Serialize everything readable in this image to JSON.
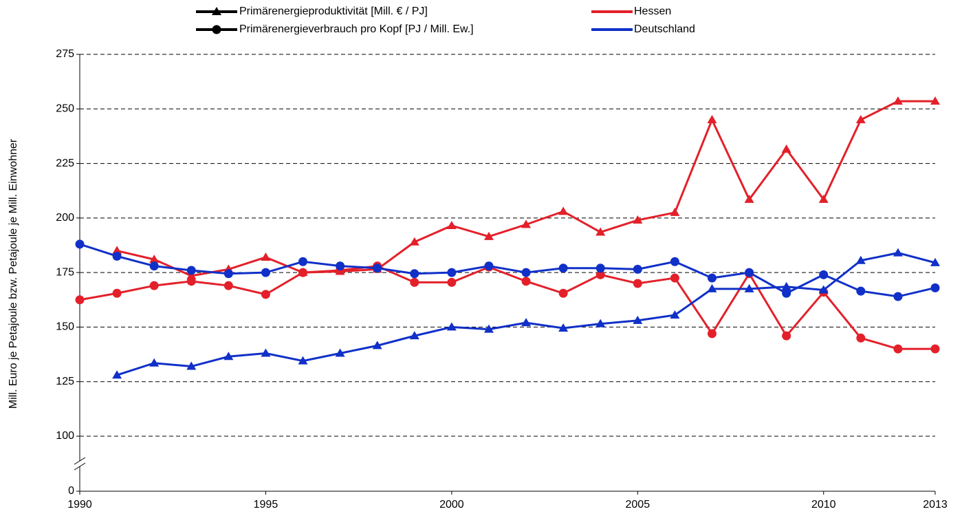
{
  "chart_data": {
    "type": "line",
    "y_label": "Mill. Euro je Petajoule bzw. Petajoule je Mill. Einwohner",
    "x": [
      1990,
      1991,
      1992,
      1993,
      1994,
      1995,
      1996,
      1997,
      1998,
      1999,
      2000,
      2001,
      2002,
      2003,
      2004,
      2005,
      2006,
      2007,
      2008,
      2009,
      2010,
      2011,
      2012,
      2013
    ],
    "xlim": [
      1990,
      2013
    ],
    "xticks": [
      1990,
      1995,
      2000,
      2005,
      2010,
      2013
    ],
    "ylim": [
      0,
      275
    ],
    "y_break": [
      0,
      100
    ],
    "yticks": [
      0,
      100,
      125,
      150,
      175,
      200,
      225,
      250,
      275
    ],
    "grid": true,
    "markers": [
      {
        "name": "Primärenergieproduktivität [Mill. € / PJ]",
        "marker": "triangle"
      },
      {
        "name": "Primärenergieverbrauch pro Kopf [PJ / Mill. Ew.]",
        "marker": "circle"
      }
    ],
    "regions": [
      {
        "name": "Hessen",
        "color": "#e3202a",
        "series": [
          {
            "marker": "triangle",
            "values": [
              null,
              185,
              181,
              173.5,
              176.5,
              182,
              175,
              175.5,
              176.5,
              189,
              196.5,
              191.5,
              197,
              203,
              193.5,
              199,
              202.5,
              245,
              208.5,
              231.5,
              208.5,
              245,
              253.5,
              253.5
            ]
          },
          {
            "marker": "circle",
            "values": [
              162.5,
              165.5,
              169,
              171,
              169,
              165,
              175,
              176,
              178,
              170.5,
              170.5,
              177.5,
              171,
              165.5,
              174,
              170,
              172.5,
              147,
              174.5,
              146,
              166,
              145,
              140,
              140
            ]
          }
        ]
      },
      {
        "name": "Deutschland",
        "color": "#1030c8",
        "series": [
          {
            "marker": "triangle",
            "values": [
              null,
              128,
              133.5,
              132,
              136.5,
              138,
              134.5,
              138,
              141.5,
              146,
              150,
              149,
              152,
              149.5,
              151.5,
              153,
              155.5,
              167.5,
              167.5,
              168.5,
              167,
              180.5,
              184,
              179.5
            ]
          },
          {
            "marker": "circle",
            "values": [
              188,
              182.5,
              178,
              176,
              174.5,
              175,
              180,
              178,
              177,
              174.5,
              175,
              178,
              175,
              177,
              177,
              176.5,
              180,
              172.5,
              175,
              165.5,
              174,
              166.5,
              164,
              168
            ]
          }
        ]
      }
    ]
  }
}
